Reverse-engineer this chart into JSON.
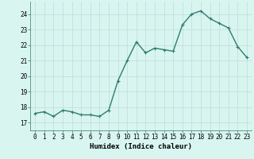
{
  "x": [
    0,
    1,
    2,
    3,
    4,
    5,
    6,
    7,
    8,
    9,
    10,
    11,
    12,
    13,
    14,
    15,
    16,
    17,
    18,
    19,
    20,
    21,
    22,
    23
  ],
  "y": [
    17.6,
    17.7,
    17.4,
    17.8,
    17.7,
    17.5,
    17.5,
    17.4,
    17.8,
    19.7,
    21.0,
    22.2,
    21.5,
    21.8,
    21.7,
    21.6,
    23.3,
    24.0,
    24.2,
    23.7,
    23.4,
    23.1,
    21.9,
    21.2
  ],
  "line_color": "#2e7d6e",
  "marker": "+",
  "marker_size": 3,
  "bg_color": "#d8f5f0",
  "grid_color": "#c0dcd8",
  "xlabel": "Humidex (Indice chaleur)",
  "xlim": [
    -0.5,
    23.5
  ],
  "ylim": [
    16.5,
    24.8
  ],
  "yticks": [
    17,
    18,
    19,
    20,
    21,
    22,
    23,
    24
  ],
  "xticks": [
    0,
    1,
    2,
    3,
    4,
    5,
    6,
    7,
    8,
    9,
    10,
    11,
    12,
    13,
    14,
    15,
    16,
    17,
    18,
    19,
    20,
    21,
    22,
    23
  ],
  "xlabel_fontsize": 6.5,
  "tick_fontsize": 5.5,
  "line_width": 1.0,
  "marker_color": "#2e7d6e"
}
